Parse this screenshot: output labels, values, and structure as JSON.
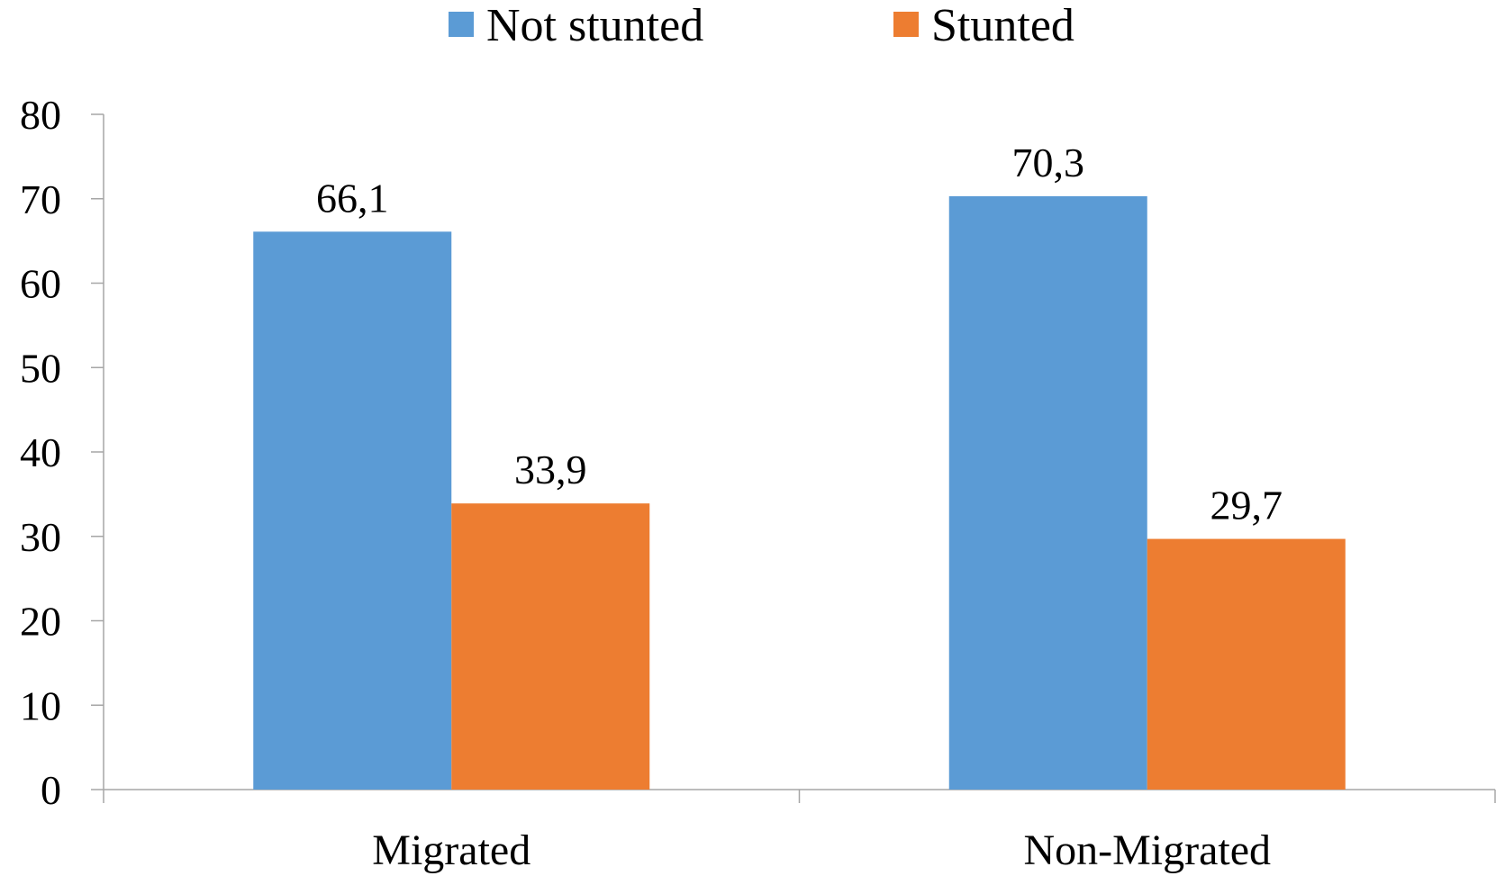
{
  "chart_data": {
    "type": "bar",
    "title": "",
    "xlabel": "",
    "ylabel": "",
    "categories": [
      "Migrated",
      "Non-Migrated"
    ],
    "series": [
      {
        "name": "Not stunted",
        "color": "#5B9BD5",
        "values": [
          66.1,
          70.3
        ],
        "labels": [
          "66,1",
          "70,3"
        ]
      },
      {
        "name": "Stunted",
        "color": "#ED7D31",
        "values": [
          33.9,
          29.7
        ],
        "labels": [
          "33,9",
          "29,7"
        ]
      }
    ],
    "ylim": [
      0,
      80
    ],
    "yticks": [
      0,
      10,
      20,
      30,
      40,
      50,
      60,
      70,
      80
    ],
    "ytick_labels": [
      "0",
      "10",
      "20",
      "30",
      "40",
      "50",
      "60",
      "70",
      "80"
    ],
    "grid": false,
    "legend": "top-center",
    "axis_color": "#a6a6a6"
  }
}
